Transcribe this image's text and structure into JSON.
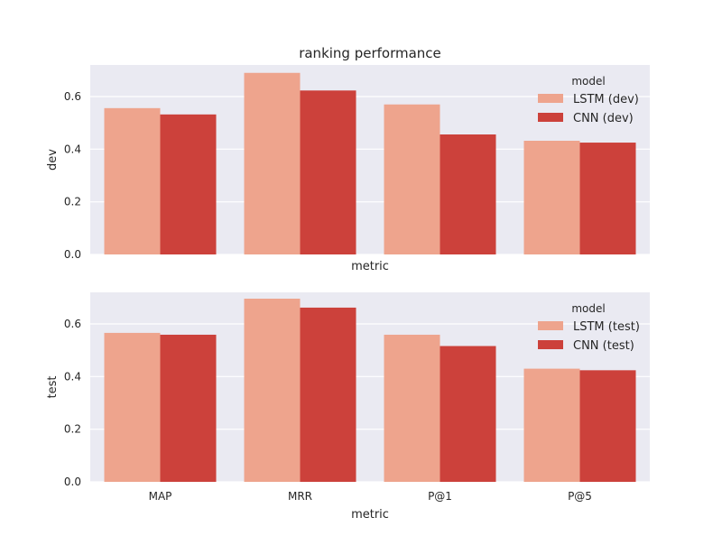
{
  "chart_data": {
    "type": "bar",
    "title": "ranking performance",
    "categories": [
      "MAP",
      "MRR",
      "P@1",
      "P@5"
    ],
    "background": "#eaeaf2",
    "grid": true,
    "subplots": [
      {
        "ylabel": "dev",
        "xlabel": "metric",
        "show_xticklabels": false,
        "ylim": [
          0,
          0.72
        ],
        "yticks": [
          "0.0",
          "0.2",
          "0.4",
          "0.6"
        ],
        "legend_title": "model",
        "legend_position": "top-right",
        "series": [
          {
            "name": "LSTM (dev)",
            "color": "#eea48d",
            "values": [
              0.556,
              0.69,
              0.57,
              0.432
            ]
          },
          {
            "name": "CNN (dev)",
            "color": "#cc413b",
            "values": [
              0.532,
              0.623,
              0.456,
              0.425
            ]
          }
        ]
      },
      {
        "ylabel": "test",
        "xlabel": "metric",
        "show_xticklabels": true,
        "ylim": [
          0,
          0.72
        ],
        "yticks": [
          "0.0",
          "0.2",
          "0.4",
          "0.6"
        ],
        "legend_title": "model",
        "legend_position": "top-right",
        "series": [
          {
            "name": "LSTM (test)",
            "color": "#eea48d",
            "values": [
              0.566,
              0.696,
              0.559,
              0.43
            ]
          },
          {
            "name": "CNN (test)",
            "color": "#cc413b",
            "values": [
              0.559,
              0.662,
              0.516,
              0.424
            ]
          }
        ]
      }
    ]
  }
}
